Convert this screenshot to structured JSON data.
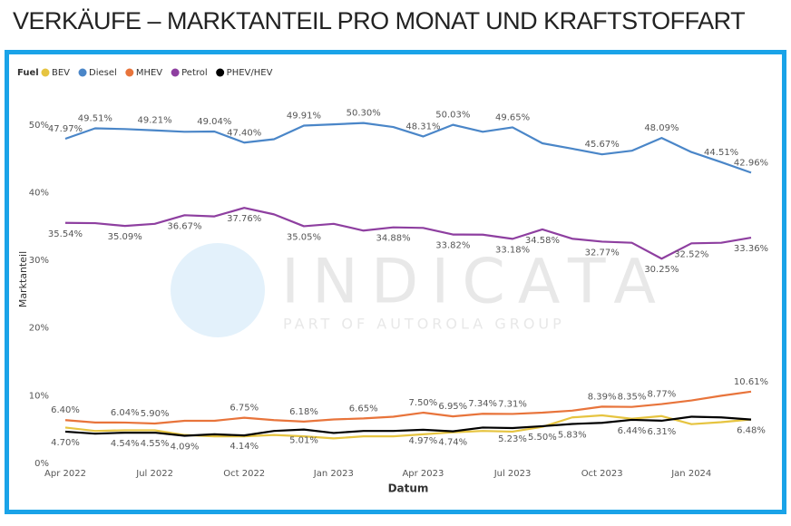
{
  "chart_data": {
    "type": "line",
    "title": "VERKÄUFE – MARKTANTEIL PRO MONAT UND KRAFTSTOFFART",
    "legend_title": "Fuel",
    "legend": "top-left",
    "watermark": "INDICATA",
    "watermark_subtitle": "PART OF AUTOROLA GROUP",
    "xlabel": "Datum",
    "ylabel": "Marktanteil",
    "categories": [
      "Apr 2022",
      null,
      null,
      "Jul 2022",
      null,
      null,
      "Oct 2022",
      null,
      null,
      "Jan 2023",
      null,
      null,
      "Apr 2023",
      null,
      null,
      "Jul 2023",
      null,
      null,
      "Oct 2023",
      null,
      null,
      "Jan 2024",
      null,
      null
    ],
    "ylim": [
      0,
      54
    ],
    "yticks": [
      {
        "value": 0,
        "label": "0%"
      },
      {
        "value": 10,
        "label": "10%"
      },
      {
        "value": 20,
        "label": "20%"
      },
      {
        "value": 30,
        "label": "30%"
      },
      {
        "value": 40,
        "label": "40%"
      },
      {
        "value": 50,
        "label": "50%"
      }
    ],
    "grid": false,
    "series": [
      {
        "name": "BEV",
        "color": "#e6c440",
        "values": [
          5.3,
          4.8,
          4.9,
          4.9,
          4.2,
          4.0,
          4.0,
          4.2,
          4.0,
          3.7,
          4.0,
          4.0,
          4.3,
          4.6,
          4.8,
          4.7,
          5.4,
          6.8,
          7.1,
          6.6,
          7.0,
          5.8,
          6.1,
          6.5
        ]
      },
      {
        "name": "Diesel",
        "color": "#4a86c8",
        "values": [
          47.97,
          49.51,
          49.4,
          49.21,
          49.0,
          49.04,
          47.4,
          47.9,
          49.91,
          50.1,
          50.3,
          49.7,
          48.31,
          50.03,
          49.0,
          49.65,
          47.3,
          46.5,
          45.67,
          46.2,
          48.09,
          46.0,
          44.51,
          42.96
        ],
        "value_labels": [
          "47.97%",
          "49.51%",
          null,
          "49.21%",
          null,
          "49.04%",
          "47.40%",
          null,
          "49.91%",
          null,
          "50.30%",
          null,
          "48.31%",
          "50.03%",
          null,
          "49.65%",
          null,
          null,
          "45.67%",
          null,
          "48.09%",
          null,
          "44.51%",
          "42.96%"
        ]
      },
      {
        "name": "MHEV",
        "color": "#e8743b",
        "values": [
          6.4,
          6.05,
          6.04,
          5.9,
          6.3,
          6.3,
          6.75,
          6.4,
          6.18,
          6.5,
          6.65,
          6.9,
          7.5,
          6.95,
          7.34,
          7.31,
          7.5,
          7.8,
          8.39,
          8.35,
          8.77,
          9.3,
          10.0,
          10.61
        ],
        "value_labels": [
          "6.40%",
          null,
          "6.04%",
          "5.90%",
          null,
          null,
          "6.75%",
          null,
          "6.18%",
          null,
          "6.65%",
          null,
          "7.50%",
          "6.95%",
          "7.34%",
          "7.31%",
          null,
          null,
          "8.39%",
          "8.35%",
          "8.77%",
          null,
          null,
          "10.61%"
        ]
      },
      {
        "name": "Petrol",
        "color": "#8e3fa0",
        "values": [
          35.54,
          35.5,
          35.09,
          35.4,
          36.67,
          36.5,
          37.76,
          36.8,
          35.05,
          35.4,
          34.4,
          34.88,
          34.8,
          33.82,
          33.8,
          33.18,
          34.58,
          33.2,
          32.77,
          32.6,
          30.25,
          32.52,
          32.6,
          33.36
        ],
        "value_labels": [
          "35.54%",
          null,
          "35.09%",
          null,
          "36.67%",
          null,
          "37.76%",
          null,
          "35.05%",
          null,
          null,
          "34.88%",
          null,
          "33.82%",
          null,
          "33.18%",
          "34.58%",
          null,
          "32.77%",
          null,
          "30.25%",
          "32.52%",
          null,
          "33.36%"
        ]
      },
      {
        "name": "PHEV/HEV",
        "color": "#000000",
        "values": [
          4.7,
          4.4,
          4.54,
          4.55,
          4.09,
          4.3,
          4.14,
          4.8,
          5.01,
          4.5,
          4.8,
          4.8,
          4.97,
          4.74,
          5.3,
          5.23,
          5.5,
          5.83,
          6.0,
          6.44,
          6.31,
          6.9,
          6.8,
          6.48
        ],
        "value_labels": [
          "4.70%",
          null,
          "4.54%",
          "4.55%",
          "4.09%",
          null,
          "4.14%",
          null,
          "5.01%",
          null,
          null,
          null,
          "4.97%",
          "4.74%",
          null,
          "5.23%",
          "5.50%",
          "5.83%",
          null,
          "6.44%",
          "6.31%",
          null,
          null,
          "6.48%"
        ]
      }
    ]
  }
}
